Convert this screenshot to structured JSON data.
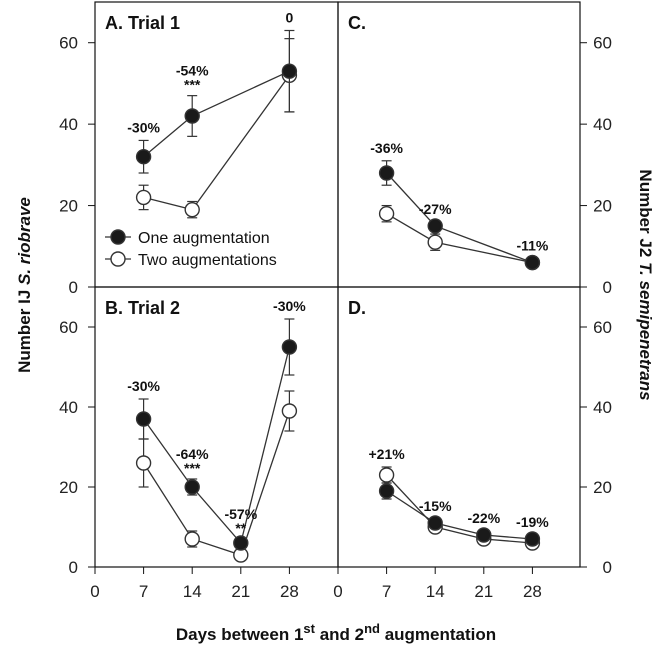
{
  "chart_data": {
    "type": "line",
    "xticks": [
      "0",
      "7",
      "14",
      "21",
      "28"
    ],
    "yticks": [
      "0",
      "20",
      "40",
      "60"
    ],
    "xlim": [
      0,
      35
    ],
    "ylim": [
      0,
      70
    ],
    "xlabel": {
      "pre": "Days between 1",
      "sup1": "st",
      "mid": " and 2",
      "sup2": "nd",
      "post": " augmentation"
    },
    "ylabel_left": {
      "pre": "Number IJ ",
      "italic": "S. riobrave"
    },
    "ylabel_right": {
      "pre": "Number J2 ",
      "italic": "T. semipenetrans"
    },
    "legend": {
      "one": "One augmentation",
      "two": "Two augmentations"
    },
    "panels": [
      {
        "id": "A",
        "title": "A.  Trial 1",
        "x": [
          7,
          14,
          28
        ],
        "series": [
          {
            "name": "One augmentation",
            "y": [
              32,
              42,
              53
            ],
            "err": [
              4,
              5,
              10
            ]
          },
          {
            "name": "Two augmentations",
            "y": [
              22,
              19,
              52
            ],
            "err": [
              3,
              2,
              9
            ]
          }
        ],
        "annotations": [
          {
            "x": 7,
            "y": 32,
            "err": 4,
            "text": "-30%"
          },
          {
            "x": 14,
            "y": 42,
            "err": 5,
            "text": "-54%",
            "sig": "***"
          },
          {
            "x": 28,
            "y": 53,
            "err": 10,
            "text": "0"
          }
        ]
      },
      {
        "id": "C",
        "title": "C.",
        "x": [
          7,
          14,
          28
        ],
        "series": [
          {
            "name": "One augmentation",
            "y": [
              28,
              15,
              6
            ],
            "err": [
              3,
              1,
              1
            ]
          },
          {
            "name": "Two augmentations",
            "y": [
              18,
              11,
              6
            ],
            "err": [
              2,
              2,
              1
            ]
          }
        ],
        "annotations": [
          {
            "x": 7,
            "y": 28,
            "err": 3,
            "text": "-36%"
          },
          {
            "x": 14,
            "y": 15,
            "err": 1,
            "text": "-27%"
          },
          {
            "x": 28,
            "y": 6,
            "err": 1,
            "text": "-11%"
          }
        ]
      },
      {
        "id": "B",
        "title": "B.  Trial 2",
        "x": [
          7,
          14,
          21,
          28
        ],
        "series": [
          {
            "name": "One augmentation",
            "y": [
              37,
              20,
              6,
              55
            ],
            "err": [
              5,
              2,
              1,
              7
            ]
          },
          {
            "name": "Two augmentations",
            "y": [
              26,
              7,
              3,
              39
            ],
            "err": [
              6,
              2,
              1,
              5
            ]
          }
        ],
        "annotations": [
          {
            "x": 7,
            "y": 37,
            "err": 5,
            "text": "-30%"
          },
          {
            "x": 14,
            "y": 20,
            "err": 2,
            "text": "-64%",
            "sig": "***"
          },
          {
            "x": 21,
            "y": 6,
            "err": 1,
            "text": "-57%",
            "sig": "**"
          },
          {
            "x": 28,
            "y": 55,
            "err": 7,
            "text": "-30%"
          }
        ]
      },
      {
        "id": "D",
        "title": "D.",
        "x": [
          7,
          14,
          21,
          28
        ],
        "series": [
          {
            "name": "One augmentation",
            "y": [
              19,
              11,
              8,
              7
            ],
            "err": [
              2,
              1,
              1,
              1
            ]
          },
          {
            "name": "Two augmentations",
            "y": [
              23,
              10,
              7,
              6
            ],
            "err": [
              2,
              1,
              1,
              1
            ]
          }
        ],
        "annotations": [
          {
            "x": 7,
            "y": 23,
            "err": 2,
            "text": "+21%"
          },
          {
            "x": 14,
            "y": 11,
            "err": 1,
            "text": "-15%"
          },
          {
            "x": 21,
            "y": 8,
            "err": 1,
            "text": "-22%"
          },
          {
            "x": 28,
            "y": 7,
            "err": 1,
            "text": "-19%"
          }
        ]
      }
    ]
  }
}
